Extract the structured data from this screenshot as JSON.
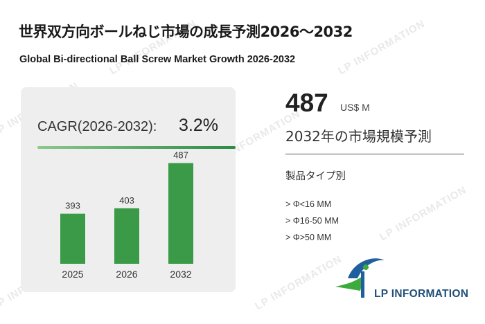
{
  "header": {
    "title_jp": "世界双方向ボールねじ市場の成長予測2026～2032",
    "title_en": "Global Bi-directional Ball Screw Market Growth 2026-2032"
  },
  "cagr": {
    "label": "CAGR(2026-2032):",
    "value": "3.2%"
  },
  "chart_data": {
    "type": "bar",
    "categories": [
      "2025",
      "2026",
      "2032"
    ],
    "values": [
      393,
      403,
      487
    ],
    "data_labels": [
      "393",
      "403",
      "487"
    ],
    "bar_color": "#3a9a48",
    "title": "",
    "xlabel": "",
    "ylabel": ""
  },
  "summary": {
    "value": "487",
    "unit": "US$ M",
    "caption": "2032年の市場規模予測"
  },
  "segments": {
    "title": "製品タイプ別",
    "items": [
      "> Φ<16 MM",
      "> Φ16-50 MM",
      "> Φ>50 MM"
    ]
  },
  "logo": {
    "text": "LP INFORMATION",
    "colors": {
      "blue": "#1f5f9e",
      "green": "#3cab3c"
    }
  },
  "watermark": {
    "text": "LP INFORMATION"
  }
}
